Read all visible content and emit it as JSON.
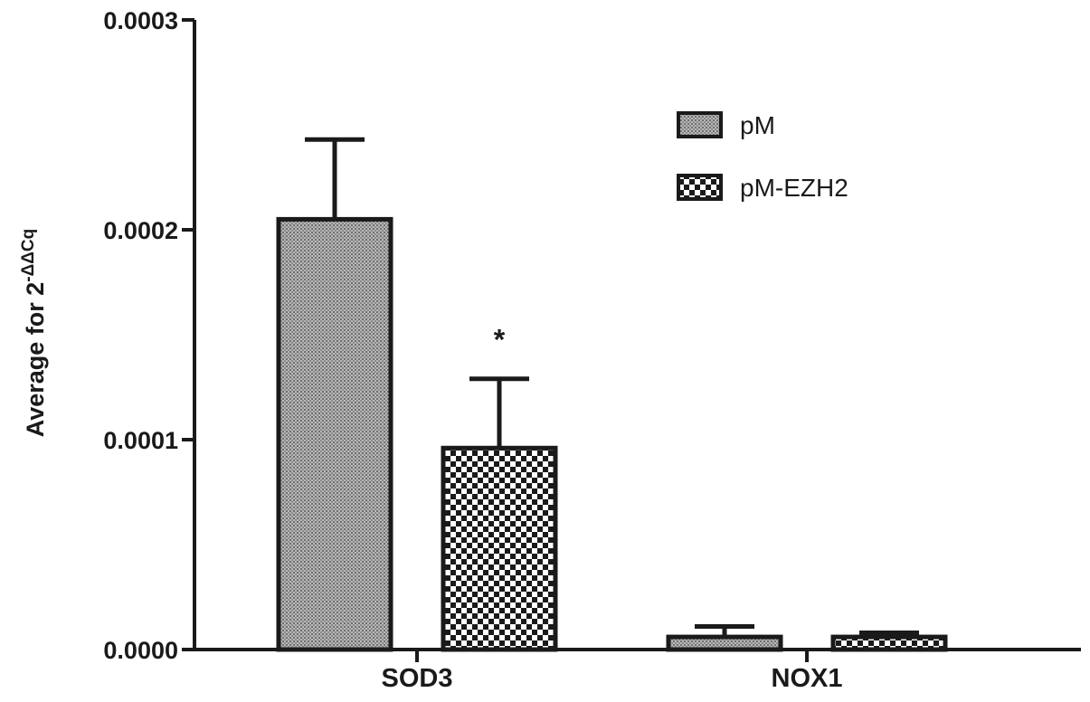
{
  "chart_data": {
    "type": "bar",
    "categories": [
      "SOD3",
      "NOX1"
    ],
    "series": [
      {
        "name": "pM",
        "values": [
          0.000205,
          6e-06
        ],
        "errors": [
          3.8e-05,
          5e-06
        ],
        "pattern": "fine-dots"
      },
      {
        "name": "pM-EZH2",
        "values": [
          9.6e-05,
          6e-06
        ],
        "errors": [
          3.3e-05,
          2e-06
        ],
        "pattern": "checker"
      }
    ],
    "ylabel": {
      "main": "Average for 2",
      "superscript": "-ΔΔCq"
    },
    "ylim": [
      0,
      0.0003
    ],
    "yticks": [
      "0.0000",
      "0.0001",
      "0.0002",
      "0.0003"
    ],
    "ytick_values": [
      0,
      0.0001,
      0.0002,
      0.0003
    ],
    "annotations": [
      {
        "text": "*",
        "category": "SOD3",
        "series": "pM-EZH2"
      }
    ],
    "legend_position": "top-right",
    "grid": false,
    "colors": {
      "ink": "#1a1a1a",
      "fill_light": "#a9a9a9",
      "background": "#ffffff"
    }
  }
}
